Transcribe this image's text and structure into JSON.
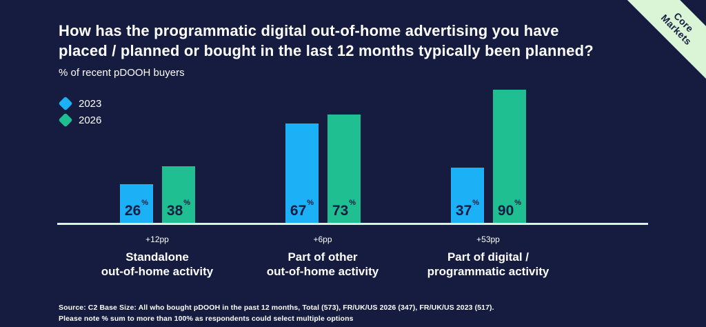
{
  "header": {
    "title": "How has the programmatic digital out-of-home advertising you have\nplaced / planned or bought in the last 12 months typically been planned?",
    "subtitle": "% of recent pDOOH buyers"
  },
  "badge": {
    "label": "Core Markets"
  },
  "legend": {
    "items": [
      {
        "label": "2023",
        "color": "#1CB0F6"
      },
      {
        "label": "2026",
        "color": "#1FBF92"
      }
    ]
  },
  "chart_data": {
    "type": "bar",
    "categories": [
      "Standalone\nout-of-home activity",
      "Part of other\nout-of-home activity",
      "Part of digital /\nprogrammatic activity"
    ],
    "series": [
      {
        "name": "2023",
        "color": "#1CB0F6",
        "values": [
          26,
          67,
          37
        ]
      },
      {
        "name": "2026",
        "color": "#1FBF92",
        "values": [
          38,
          73,
          90
        ]
      }
    ],
    "deltas": [
      "+12pp",
      "+6pp",
      "+53pp"
    ],
    "value_suffix": "%",
    "ylim": [
      0,
      100
    ],
    "grid": false,
    "legend_position": "top-left",
    "baseline_color": "#D9F5D6",
    "value_label_color": "#151C40"
  },
  "footer": {
    "line1": "Source: C2 Base Size: All who bought pDOOH in the past 12 months, Total (573), FR/UK/US 2026 (347), FR/UK/US 2023 (517).",
    "line2": "Please note % sum to more than 100% as respondents could select multiple options"
  },
  "colors": {
    "background": "#151C40",
    "accent_blue": "#1CB0F6",
    "accent_green": "#1FBF92",
    "mint": "#D9F5D6"
  }
}
